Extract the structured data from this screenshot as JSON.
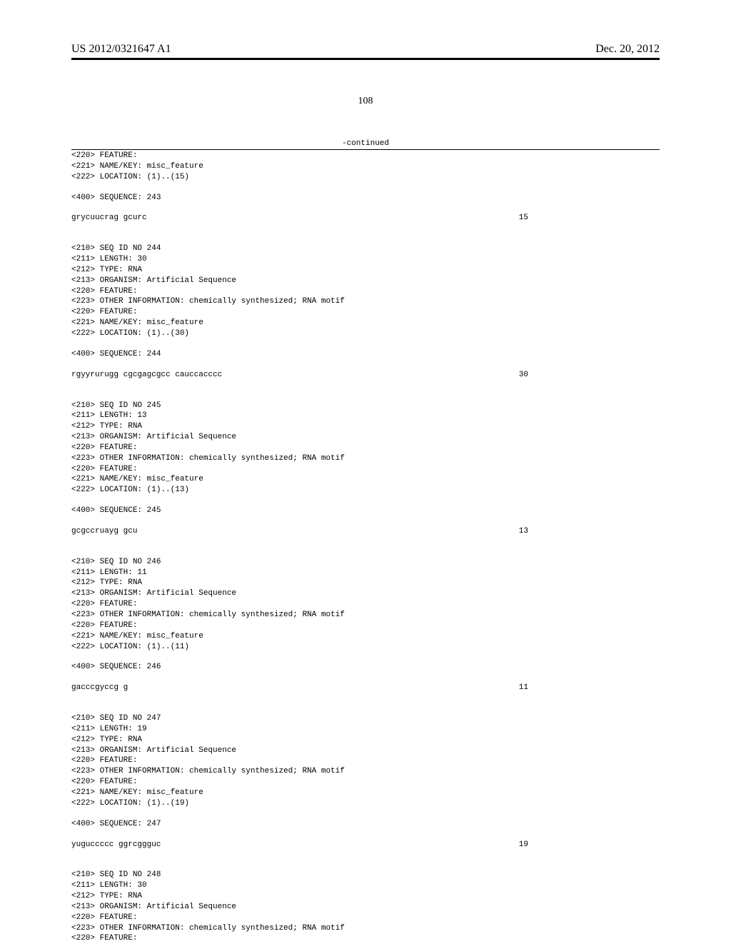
{
  "header": {
    "publication_number": "US 2012/0321647 A1",
    "publication_date": "Dec. 20, 2012"
  },
  "page_number": "108",
  "continued_label": "-continued",
  "entries": [
    {
      "lines": [
        "<220> FEATURE:",
        "<221> NAME/KEY: misc_feature",
        "<222> LOCATION: (1)..(15)"
      ]
    },
    {
      "lines": [
        "<400> SEQUENCE: 243"
      ]
    },
    {
      "sequence": "grycuucrag gcurc",
      "length": "15"
    },
    {
      "lines": [
        "<210> SEQ ID NO 244",
        "<211> LENGTH: 30",
        "<212> TYPE: RNA",
        "<213> ORGANISM: Artificial Sequence",
        "<220> FEATURE:",
        "<223> OTHER INFORMATION: chemically synthesized; RNA motif",
        "<220> FEATURE:",
        "<221> NAME/KEY: misc_feature",
        "<222> LOCATION: (1)..(30)"
      ]
    },
    {
      "lines": [
        "<400> SEQUENCE: 244"
      ]
    },
    {
      "sequence": "rgyyrurugg cgcgagcgcc cauccacccc",
      "length": "30"
    },
    {
      "lines": [
        "<210> SEQ ID NO 245",
        "<211> LENGTH: 13",
        "<212> TYPE: RNA",
        "<213> ORGANISM: Artificial Sequence",
        "<220> FEATURE:",
        "<223> OTHER INFORMATION: chemically synthesized; RNA motif",
        "<220> FEATURE:",
        "<221> NAME/KEY: misc_feature",
        "<222> LOCATION: (1)..(13)"
      ]
    },
    {
      "lines": [
        "<400> SEQUENCE: 245"
      ]
    },
    {
      "sequence": "gcgccruayg gcu",
      "length": "13"
    },
    {
      "lines": [
        "<210> SEQ ID NO 246",
        "<211> LENGTH: 11",
        "<212> TYPE: RNA",
        "<213> ORGANISM: Artificial Sequence",
        "<220> FEATURE:",
        "<223> OTHER INFORMATION: chemically synthesized; RNA motif",
        "<220> FEATURE:",
        "<221> NAME/KEY: misc_feature",
        "<222> LOCATION: (1)..(11)"
      ]
    },
    {
      "lines": [
        "<400> SEQUENCE: 246"
      ]
    },
    {
      "sequence": "gacccgyccg g",
      "length": "11"
    },
    {
      "lines": [
        "<210> SEQ ID NO 247",
        "<211> LENGTH: 19",
        "<212> TYPE: RNA",
        "<213> ORGANISM: Artificial Sequence",
        "<220> FEATURE:",
        "<223> OTHER INFORMATION: chemically synthesized; RNA motif",
        "<220> FEATURE:",
        "<221> NAME/KEY: misc_feature",
        "<222> LOCATION: (1)..(19)"
      ]
    },
    {
      "lines": [
        "<400> SEQUENCE: 247"
      ]
    },
    {
      "sequence": "yuguccccc ggrcggguc",
      "length": "19"
    },
    {
      "lines": [
        "<210> SEQ ID NO 248",
        "<211> LENGTH: 30",
        "<212> TYPE: RNA",
        "<213> ORGANISM: Artificial Sequence",
        "<220> FEATURE:",
        "<223> OTHER INFORMATION: chemically synthesized; RNA motif",
        "<220> FEATURE:"
      ]
    }
  ]
}
